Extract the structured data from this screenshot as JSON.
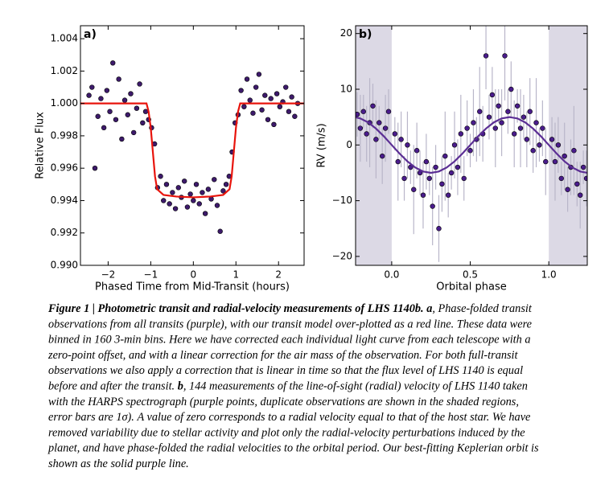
{
  "chart_data": [
    {
      "type": "scatter",
      "panel_label": "a)",
      "xlabel": "Phased Time from Mid-Transit (hours)",
      "ylabel": "Relative Flux",
      "xlim": [
        -2.65,
        2.6
      ],
      "ylim": [
        0.99,
        1.0048
      ],
      "xticks": [
        {
          "value": -2,
          "label": "−2"
        },
        {
          "value": -1,
          "label": "−1"
        },
        0,
        1,
        2
      ],
      "yticks": [
        {
          "value": 0.99,
          "label": "0.990"
        },
        {
          "value": 0.992,
          "label": "0.992"
        },
        {
          "value": 0.994,
          "label": "0.994"
        },
        {
          "value": 0.996,
          "label": "0.996"
        },
        {
          "value": 0.998,
          "label": "0.998"
        },
        {
          "value": 1.0,
          "label": "1.000"
        },
        {
          "value": 1.002,
          "label": "1.002"
        },
        {
          "value": 1.004,
          "label": "1.004"
        }
      ],
      "series": [
        {
          "mode": "markers",
          "color": "#3d1a6b",
          "x": [
            -2.45,
            -2.38,
            -2.31,
            -2.24,
            -2.17,
            -2.1,
            -2.03,
            -1.96,
            -1.89,
            -1.82,
            -1.75,
            -1.68,
            -1.61,
            -1.54,
            -1.47,
            -1.4,
            -1.33,
            -1.26,
            -1.19,
            -1.12,
            -1.05,
            -0.98,
            -0.91,
            -0.84,
            -0.77,
            -0.7,
            -0.63,
            -0.56,
            -0.49,
            -0.42,
            -0.35,
            -0.28,
            -0.21,
            -0.14,
            -0.07,
            0,
            0.07,
            0.14,
            0.21,
            0.28,
            0.35,
            0.42,
            0.49,
            0.56,
            0.63,
            0.7,
            0.77,
            0.84,
            0.91,
            0.98,
            1.05,
            1.12,
            1.19,
            1.26,
            1.33,
            1.4,
            1.47,
            1.54,
            1.61,
            1.68,
            1.75,
            1.82,
            1.89,
            1.96,
            2.03,
            2.1,
            2.17,
            2.24,
            2.31,
            2.38,
            2.45
          ],
          "values": [
            1.0005,
            1.001,
            0.996,
            0.9992,
            1.0003,
            0.9985,
            1.0008,
            0.9995,
            1.0025,
            0.999,
            1.0015,
            0.9978,
            1.0002,
            0.9993,
            1.0006,
            0.9982,
            0.9997,
            1.0012,
            0.9988,
            0.9995,
            0.999,
            0.9985,
            0.9975,
            0.9948,
            0.9955,
            0.994,
            0.995,
            0.9938,
            0.9945,
            0.9935,
            0.9948,
            0.9942,
            0.9952,
            0.9936,
            0.9944,
            0.994,
            0.995,
            0.9938,
            0.9945,
            0.9932,
            0.9947,
            0.9941,
            0.9953,
            0.9937,
            0.9921,
            0.9946,
            0.995,
            0.9955,
            0.997,
            0.9988,
            0.9993,
            1.0008,
            0.9998,
            1.0015,
            1.0002,
            0.9994,
            1.001,
            1.0018,
            0.9996,
            1.0005,
            0.999,
            1.0003,
            0.9987,
            1.0006,
            0.9998,
            1.0001,
            1.001,
            0.9995,
            1.0004,
            0.9992,
            1.0
          ]
        },
        {
          "mode": "line",
          "color": "#e8140c",
          "x": [
            -2.65,
            -1.1,
            -1.05,
            -1.0,
            -0.95,
            -0.9,
            -0.85,
            -0.7,
            -0.4,
            0,
            0.4,
            0.7,
            0.85,
            0.9,
            0.95,
            1.0,
            1.05,
            1.1,
            2.6
          ],
          "values": [
            1.0,
            1.0,
            0.9995,
            0.9985,
            0.997,
            0.9955,
            0.9947,
            0.99435,
            0.99425,
            0.9942,
            0.99425,
            0.99435,
            0.9947,
            0.9955,
            0.997,
            0.9985,
            0.9995,
            1.0,
            1.0
          ]
        }
      ]
    },
    {
      "type": "scatter",
      "panel_label": "b)",
      "xlabel": "Orbital phase",
      "ylabel": "RV (m/s)",
      "xlim": [
        -0.23,
        1.245
      ],
      "ylim": [
        -21.6,
        21.4
      ],
      "shaded_regions": [
        [
          -0.23,
          0.0
        ],
        [
          1.0,
          1.245
        ]
      ],
      "shade_color": "#dcd9e5",
      "xticks": [
        {
          "value": 0.0,
          "label": "0.0"
        },
        0.5,
        {
          "value": 1.0,
          "label": "1.0"
        }
      ],
      "yticks": [
        {
          "value": -20,
          "label": "−20"
        },
        {
          "value": -10,
          "label": "−10"
        },
        0,
        10,
        20
      ],
      "series": [
        {
          "mode": "markers",
          "color": "#4a1c8c",
          "error_color": "#b9b6c9",
          "x": [
            -0.22,
            -0.2,
            -0.18,
            -0.16,
            -0.14,
            -0.12,
            -0.1,
            -0.08,
            -0.06,
            -0.04,
            -0.02,
            0.02,
            0.04,
            0.06,
            0.08,
            0.1,
            0.12,
            0.14,
            0.16,
            0.18,
            0.2,
            0.22,
            0.24,
            0.26,
            0.28,
            0.3,
            0.32,
            0.34,
            0.36,
            0.38,
            0.4,
            0.42,
            0.44,
            0.46,
            0.48,
            0.5,
            0.52,
            0.54,
            0.56,
            0.58,
            0.6,
            0.62,
            0.64,
            0.66,
            0.68,
            0.7,
            0.72,
            0.74,
            0.76,
            0.78,
            0.8,
            0.82,
            0.84,
            0.86,
            0.88,
            0.9,
            0.92,
            0.94,
            0.96,
            0.98,
            1.02,
            1.04,
            1.06,
            1.08,
            1.1,
            1.12,
            1.14,
            1.16,
            1.18,
            1.2,
            1.22,
            1.24
          ],
          "values": [
            5.5,
            3,
            6,
            2,
            4,
            7,
            1,
            4,
            -2,
            3,
            6,
            2,
            -3,
            1,
            -6,
            0,
            -4,
            -8,
            -1,
            -5,
            -9,
            -3,
            -6,
            -11,
            -4,
            -15,
            -7,
            -2,
            -9,
            -5,
            0,
            -4,
            2,
            -6,
            3,
            -1,
            4,
            1,
            6,
            2,
            16,
            5,
            9,
            3,
            7,
            4,
            16,
            6,
            10,
            2,
            7,
            3,
            5,
            1,
            6,
            -1,
            4,
            0,
            3,
            -3,
            1,
            -3,
            0,
            -6,
            -2,
            -8,
            -4,
            -1,
            -7,
            -9,
            -4,
            -6
          ],
          "errors": [
            4,
            6,
            3,
            5,
            8,
            4,
            7,
            3,
            5,
            6,
            4,
            3,
            7,
            5,
            4,
            6,
            3,
            8,
            5,
            4,
            6,
            5,
            3,
            7,
            4,
            6,
            5,
            8,
            4,
            3,
            6,
            5,
            7,
            4,
            5,
            3,
            6,
            4,
            8,
            5,
            6,
            4,
            5,
            7,
            3,
            6,
            8,
            4,
            5,
            6,
            3,
            7,
            4,
            5,
            6,
            4,
            8,
            3,
            5,
            6,
            4,
            7,
            5,
            3,
            6,
            4,
            5,
            8,
            4,
            6,
            3,
            5
          ]
        },
        {
          "mode": "line",
          "color": "#5b2e94",
          "x": [
            -0.23,
            -0.2,
            -0.15,
            -0.1,
            -0.05,
            0,
            0.05,
            0.1,
            0.15,
            0.2,
            0.25,
            0.3,
            0.35,
            0.4,
            0.45,
            0.5,
            0.55,
            0.6,
            0.65,
            0.7,
            0.75,
            0.8,
            0.85,
            0.9,
            0.95,
            1.0,
            1.05,
            1.1,
            1.15,
            1.2,
            1.245
          ],
          "values": [
            4.96,
            4.76,
            4.05,
            2.94,
            1.55,
            0,
            -1.55,
            -2.94,
            -4.05,
            -4.76,
            -5,
            -4.76,
            -4.05,
            -2.94,
            -1.55,
            0,
            1.55,
            2.94,
            4.05,
            4.76,
            5,
            4.76,
            4.05,
            2.94,
            1.55,
            0,
            -1.55,
            -2.94,
            -4.05,
            -4.76,
            -5.0
          ]
        }
      ]
    }
  ],
  "caption": {
    "lines": [
      [
        {
          "text": "Figure 1 | Photometric transit and radial-velocity measurements of LHS 1140b. a",
          "bold": true
        },
        {
          "text": ", Phase-folded transit"
        }
      ],
      [
        {
          "text": "observations from all transits (purple), with our transit model over-plotted as a red line. These data were"
        }
      ],
      [
        {
          "text": "binned in 160 3-min bins. Here we have corrected each individual light curve from each telescope with a"
        }
      ],
      [
        {
          "text": "zero-point offset, and with a linear correction for the air mass of the observation. For both full-transit"
        }
      ],
      [
        {
          "text": "observations we also apply a correction that is linear in time so that the flux level of LHS 1140 is equal"
        }
      ],
      [
        {
          "text": "before and after the transit. "
        },
        {
          "text": "b",
          "bold": true
        },
        {
          "text": ", 144 measurements of the line-of-sight (radial) velocity of LHS 1140 taken"
        }
      ],
      [
        {
          "text": "with the HARPS spectrograph (purple points, duplicate observations are shown in the shaded regions,"
        }
      ],
      [
        {
          "text": "error bars are 1σ). A value of zero corresponds to a radial velocity equal to that of the host star. We have"
        }
      ],
      [
        {
          "text": "removed variability due to stellar activity and plot only the radial-velocity perturbations induced by the"
        }
      ],
      [
        {
          "text": "planet, and have phase-folded the radial velocities to the orbital period. Our best-fitting Keplerian orbit is"
        }
      ],
      [
        {
          "text": "shown as the solid purple line."
        }
      ]
    ]
  }
}
